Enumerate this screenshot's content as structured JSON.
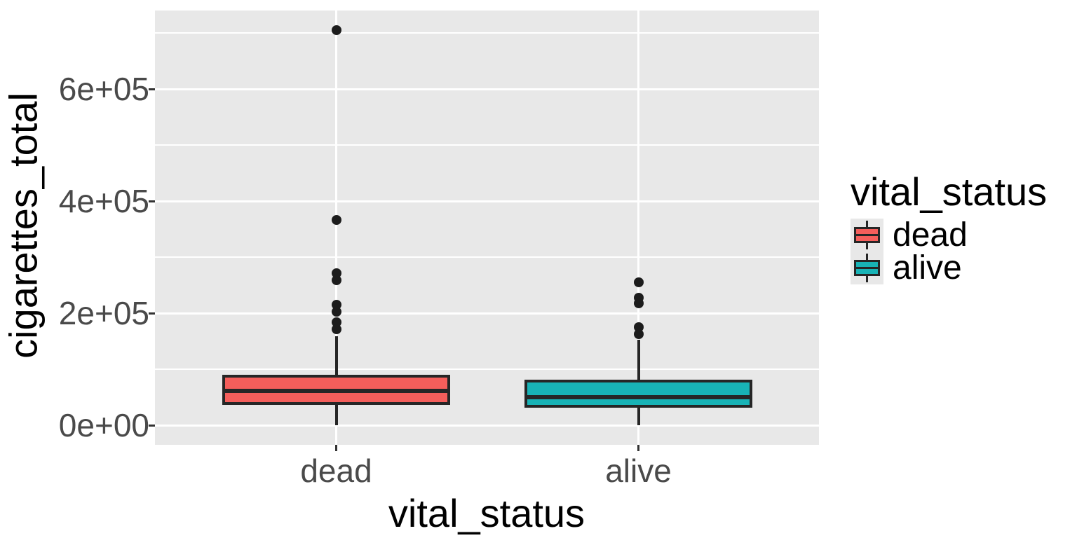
{
  "chart_data": {
    "type": "boxplot",
    "title": "",
    "xlabel": "vital_status",
    "ylabel": "cigarettes_total",
    "categories": [
      "dead",
      "alive"
    ],
    "y_axis": {
      "ticks": [
        {
          "value": 0,
          "label": "0e+00"
        },
        {
          "value": 200000,
          "label": "2e+05"
        },
        {
          "value": 400000,
          "label": "4e+05"
        },
        {
          "value": 600000,
          "label": "6e+05"
        }
      ],
      "minor_ticks": [
        100000,
        300000,
        500000,
        700000
      ],
      "range_shown": [
        -37000,
        743000
      ]
    },
    "series": [
      {
        "name": "dead",
        "fill_color": "#F45E5B",
        "lower_whisker": 0,
        "q1": 36000,
        "median": 61000,
        "q3": 90000,
        "upper_whisker": 159000,
        "outliers": [
          171000,
          184000,
          203000,
          215000,
          259000,
          271000,
          366000,
          705000
        ]
      },
      {
        "name": "alive",
        "fill_color": "#18B3B6",
        "lower_whisker": 0,
        "q1": 31000,
        "median": 50000,
        "q3": 81000,
        "upper_whisker": 153000,
        "outliers": [
          163000,
          175000,
          217000,
          227000,
          255000
        ]
      }
    ],
    "legend": {
      "title": "vital_status",
      "position": "right",
      "entries": [
        {
          "label": "dead",
          "color": "#F45E5B"
        },
        {
          "label": "alive",
          "color": "#18B3B6"
        }
      ]
    },
    "style": {
      "panel_bg": "#E8E8E8",
      "grid_color": "#FFFFFF",
      "stroke_color": "#262626",
      "outlier_color": "#1C1C1C",
      "tick_mark_color": "#333333",
      "tick_label_color": "#4A4A4A",
      "grid": true
    }
  }
}
